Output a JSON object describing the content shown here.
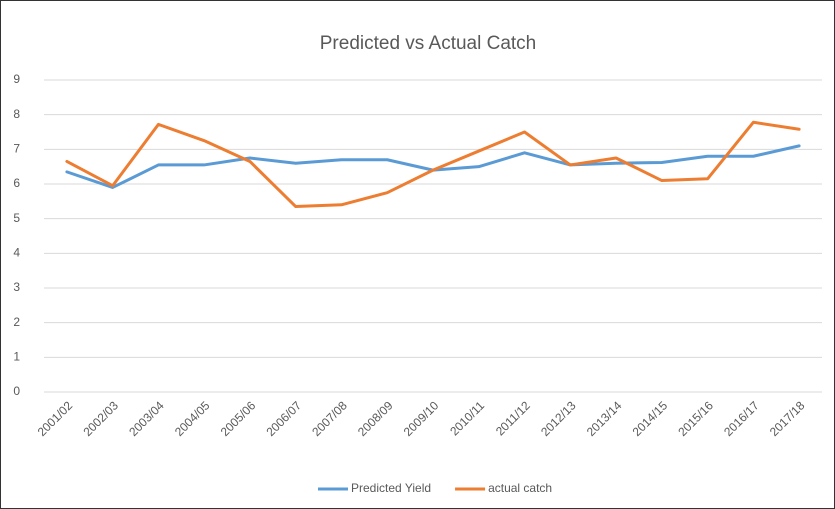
{
  "chart_data": {
    "type": "line",
    "title": "Predicted vs Actual Catch",
    "categories": [
      "2001/02",
      "2002/03",
      "2003/04",
      "2004/05",
      "2005/06",
      "2006/07",
      "2007/08",
      "2008/09",
      "2009/10",
      "2010/11",
      "2011/12",
      "2012/13",
      "2013/14",
      "2014/15",
      "2015/16",
      "2016/17",
      "2017/18"
    ],
    "series": [
      {
        "name": "Predicted Yield",
        "color": "#5b9bd5",
        "values": [
          6.35,
          5.9,
          6.55,
          6.55,
          6.75,
          6.6,
          6.7,
          6.7,
          6.4,
          6.5,
          6.9,
          6.55,
          6.6,
          6.62,
          6.8,
          6.8,
          7.1
        ]
      },
      {
        "name": "actual catch",
        "color": "#ed7d31",
        "values": [
          6.65,
          5.95,
          7.72,
          7.25,
          6.65,
          5.35,
          5.4,
          5.75,
          6.4,
          6.95,
          7.5,
          6.55,
          6.75,
          6.1,
          6.15,
          7.78,
          7.58
        ]
      }
    ],
    "ylim": [
      0,
      9
    ],
    "yticks": [
      0,
      1,
      2,
      3,
      4,
      5,
      6,
      7,
      8,
      9
    ],
    "grid": true,
    "legend": "bottom"
  }
}
